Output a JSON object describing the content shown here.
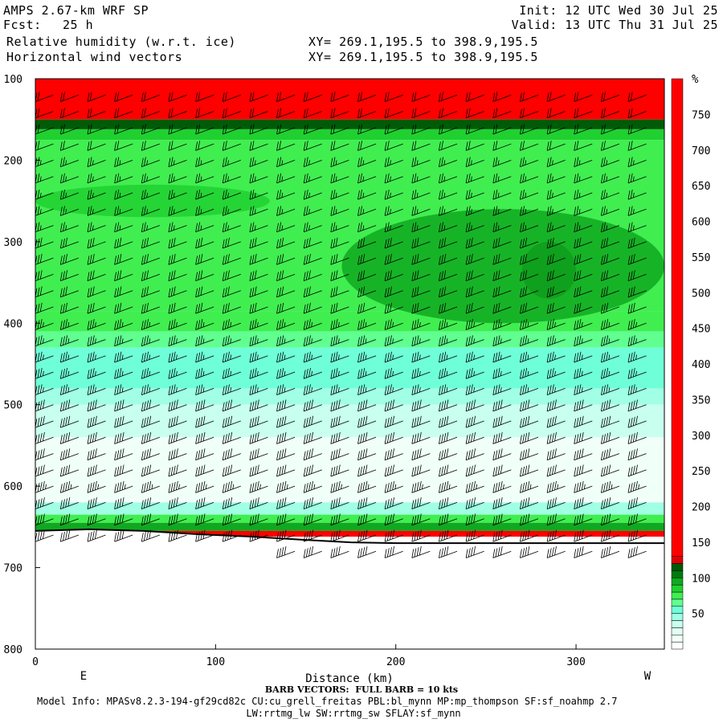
{
  "header": {
    "model": "AMPS 2.67-km WRF SP",
    "fcst_label": "Fcst:",
    "fcst_value": "25 h",
    "init": "Init: 12 UTC Wed 30 Jul 25",
    "valid": "Valid: 13 UTC Thu 31 Jul 25",
    "field1": "Relative humidity (w.r.t. ice)",
    "field2": "Horizontal wind vectors",
    "xy1": "XY= 269.1,195.5 to 398.9,195.5",
    "xy2": "XY= 269.1,195.5 to 398.9,195.5"
  },
  "chart_data": {
    "type": "heatmap",
    "title": "Relative humidity (w.r.t. ice)",
    "xlabel": "Distance (km)",
    "ylabel": "",
    "xlim": [
      0,
      349
    ],
    "ylim": [
      800,
      100
    ],
    "y_scale": "linear",
    "x_ticks": [
      0,
      100,
      200,
      300
    ],
    "y_ticks": [
      100,
      200,
      300,
      400,
      500,
      600,
      700,
      800
    ],
    "direction_labels": {
      "left": "E",
      "right": "W"
    },
    "colorbar": {
      "unit": "%",
      "tick_labels": [
        50,
        100,
        150,
        200,
        250,
        300,
        350,
        400,
        450,
        500,
        550,
        600,
        650,
        700,
        750
      ],
      "levels": [
        {
          "range": [
            0,
            10
          ],
          "color": "#ffffff"
        },
        {
          "range": [
            10,
            20
          ],
          "color": "#f0fff8"
        },
        {
          "range": [
            20,
            30
          ],
          "color": "#e0fff3"
        },
        {
          "range": [
            30,
            40
          ],
          "color": "#c8ffee"
        },
        {
          "range": [
            40,
            50
          ],
          "color": "#a0ffe4"
        },
        {
          "range": [
            50,
            60
          ],
          "color": "#6fffd8"
        },
        {
          "range": [
            60,
            70
          ],
          "color": "#60ff90"
        },
        {
          "range": [
            70,
            80
          ],
          "color": "#40ee50"
        },
        {
          "range": [
            80,
            90
          ],
          "color": "#20d030"
        },
        {
          "range": [
            90,
            100
          ],
          "color": "#10a820"
        },
        {
          "range": [
            100,
            110
          ],
          "color": "#007a10"
        },
        {
          "range": [
            110,
            120
          ],
          "color": "#005a08"
        },
        {
          "range": [
            120,
            130
          ],
          "color": "#e00000"
        },
        {
          "range": [
            130,
            800
          ],
          "color": "#ff0000"
        }
      ]
    },
    "layers": [
      {
        "p_top": 100,
        "p_bot": 150,
        "rh": 150
      },
      {
        "p_top": 150,
        "p_bot": 162,
        "rh": 115
      },
      {
        "p_top": 162,
        "p_bot": 175,
        "rh": 85
      },
      {
        "p_top": 175,
        "p_bot": 385,
        "rh": 75
      },
      {
        "p_top": 385,
        "p_bot": 410,
        "rh": 70
      },
      {
        "p_top": 410,
        "p_bot": 430,
        "rh": 65
      },
      {
        "p_top": 430,
        "p_bot": 480,
        "rh": 55
      },
      {
        "p_top": 480,
        "p_bot": 500,
        "rh": 45
      },
      {
        "p_top": 500,
        "p_bot": 540,
        "rh": 35
      },
      {
        "p_top": 540,
        "p_bot": 620,
        "rh": 15
      },
      {
        "p_top": 620,
        "p_bot": 635,
        "rh": 45
      },
      {
        "p_top": 635,
        "p_bot": 645,
        "rh": 75
      },
      {
        "p_top": 645,
        "p_bot": 655,
        "rh": 95
      },
      {
        "p_top": 655,
        "p_bot": 662,
        "rh": 150
      }
    ],
    "moist_patches": [
      {
        "x": [
          270,
          300
        ],
        "p": [
          300,
          370
        ],
        "rh": 110
      },
      {
        "x": [
          170,
          349
        ],
        "p": [
          260,
          400
        ],
        "rh": 90
      },
      {
        "x": [
          0,
          130
        ],
        "p": [
          230,
          270
        ],
        "rh": 85
      }
    ],
    "terrain_pressure": [
      [
        0,
        655
      ],
      [
        30,
        653
      ],
      [
        60,
        655
      ],
      [
        90,
        659
      ],
      [
        120,
        662
      ],
      [
        150,
        666
      ],
      [
        175,
        669
      ],
      [
        200,
        670
      ],
      [
        250,
        670
      ],
      [
        300,
        670
      ],
      [
        349,
        670
      ]
    ],
    "wind_barbs": {
      "x_km": [
        10,
        24,
        39,
        54,
        69,
        84,
        99,
        114,
        129,
        144,
        159,
        174,
        189,
        204,
        219,
        234,
        249,
        264,
        279,
        294,
        309,
        324,
        339
      ],
      "p_levels": [
        120,
        140,
        160,
        180,
        200,
        220,
        240,
        260,
        280,
        300,
        320,
        340,
        360,
        380,
        400,
        420,
        440,
        460,
        480,
        500,
        520,
        540,
        560,
        580,
        600,
        620,
        640,
        660,
        680
      ],
      "speed_kts_by_p": [
        [
          100,
          20
        ],
        [
          200,
          25
        ],
        [
          300,
          30
        ],
        [
          400,
          35
        ],
        [
          500,
          40
        ],
        [
          600,
          45
        ],
        [
          680,
          40
        ]
      ],
      "full_barb_kts": 10
    }
  },
  "footer": {
    "barb_note": "BARB VECTORS:  FULL BARB = 10 kts",
    "model_info": "Model Info: MPASv8.2.3-194-gf29cd82c CU:cu_grell_freitas PBL:bl_mynn MP:mp_thompson SF:sf_noahmp 2.7",
    "model_info2": "LW:rrtmg_lw SW:rrtmg_sw SFLAY:sf_mynn"
  }
}
